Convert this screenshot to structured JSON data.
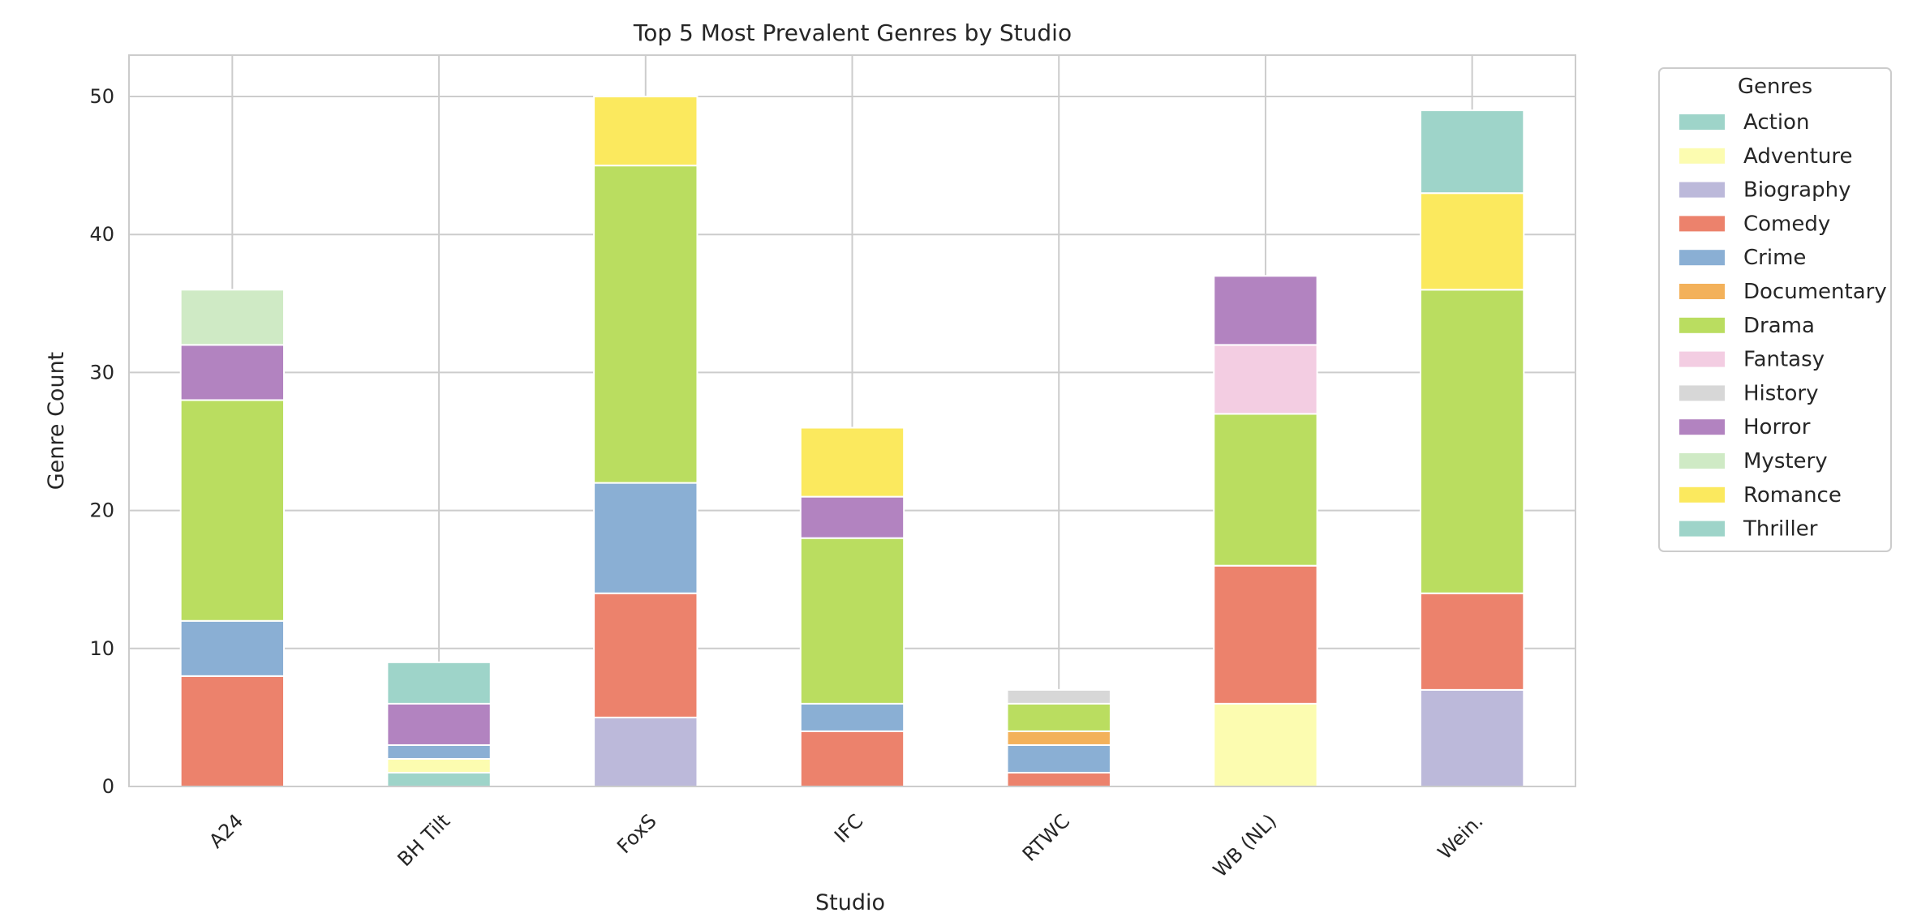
{
  "chart_data": {
    "type": "bar",
    "stacked": true,
    "title": "Top 5 Most Prevalent Genres by Studio",
    "xlabel": "Studio",
    "ylabel": "Genre Count",
    "ylim": [
      0,
      53
    ],
    "yticks": [
      "0",
      "10",
      "20",
      "30",
      "40",
      "50"
    ],
    "grid": true,
    "categories": [
      "A24",
      "BH Tilt",
      "FoxS",
      "IFC",
      "RTWC",
      "WB (NL)",
      "Wein."
    ],
    "legend": {
      "title": "Genres",
      "placement": "outside-right"
    },
    "series": [
      {
        "name": "Action",
        "color": "#9ed4c9",
        "values": [
          0,
          1,
          0,
          0,
          0,
          0,
          0
        ]
      },
      {
        "name": "Adventure",
        "color": "#fcfcb0",
        "values": [
          0,
          1,
          0,
          0,
          0,
          6,
          0
        ]
      },
      {
        "name": "Biography",
        "color": "#bcb9da",
        "values": [
          0,
          0,
          5,
          0,
          0,
          0,
          7
        ]
      },
      {
        "name": "Comedy",
        "color": "#ec826c",
        "values": [
          8,
          0,
          9,
          4,
          1,
          10,
          7
        ]
      },
      {
        "name": "Crime",
        "color": "#8aafd4",
        "values": [
          4,
          1,
          8,
          2,
          2,
          0,
          0
        ]
      },
      {
        "name": "Documentary",
        "color": "#f3b15a",
        "values": [
          0,
          0,
          0,
          0,
          1,
          0,
          0
        ]
      },
      {
        "name": "Drama",
        "color": "#badd60",
        "values": [
          16,
          0,
          23,
          12,
          2,
          11,
          22
        ]
      },
      {
        "name": "Fantasy",
        "color": "#f3cde2",
        "values": [
          0,
          0,
          0,
          0,
          0,
          5,
          0
        ]
      },
      {
        "name": "History",
        "color": "#d7d7d7",
        "values": [
          0,
          0,
          0,
          0,
          1,
          0,
          0
        ]
      },
      {
        "name": "Horror",
        "color": "#b283c0",
        "values": [
          4,
          3,
          0,
          3,
          0,
          5,
          0
        ]
      },
      {
        "name": "Mystery",
        "color": "#cfeac5",
        "values": [
          4,
          0,
          0,
          0,
          0,
          0,
          0
        ]
      },
      {
        "name": "Romance",
        "color": "#fbe95e",
        "values": [
          0,
          0,
          5,
          5,
          0,
          0,
          7
        ]
      },
      {
        "name": "Thriller",
        "color": "#9ed4c9",
        "values": [
          0,
          3,
          0,
          0,
          0,
          0,
          6
        ]
      }
    ]
  }
}
